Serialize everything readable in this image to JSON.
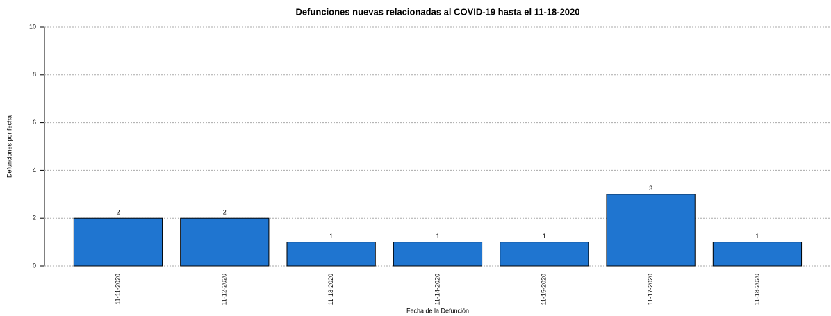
{
  "chart_data": {
    "type": "bar",
    "title": "Defunciones nuevas relacionadas al COVID-19 hasta el 11-18-2020",
    "x_label": "Fecha de la Defunción",
    "y_label": "Defunciones por fecha",
    "categories": [
      "11-11-2020",
      "11-12-2020",
      "11-13-2020",
      "11-14-2020",
      "11-15-2020",
      "11-17-2020",
      "11-18-2020"
    ],
    "values": [
      2,
      2,
      1,
      1,
      1,
      3,
      1
    ],
    "color": "#1f75d0",
    "ylim": [
      0,
      10
    ],
    "yticks": [
      0,
      2,
      4,
      6,
      8,
      10
    ],
    "grid": true
  }
}
